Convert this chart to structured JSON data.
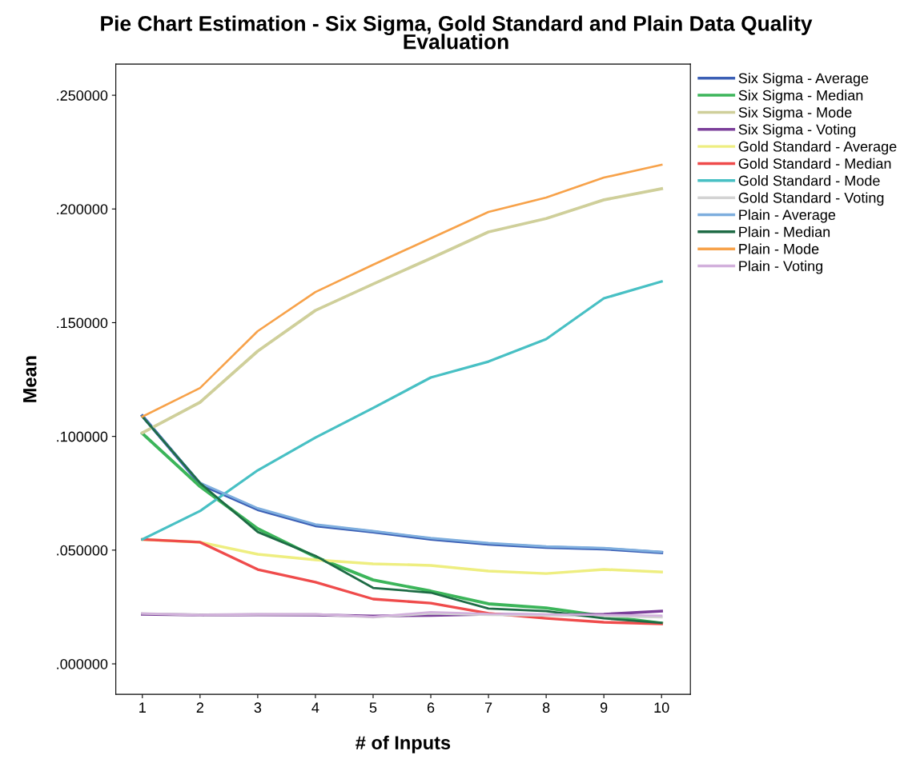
{
  "chart_data": {
    "type": "line",
    "title": "Pie Chart Estimation - Six Sigma, Gold Standard and Plain Data Quality\nEvaluation",
    "xlabel": "# of Inputs",
    "ylabel": "Mean",
    "x": [
      1,
      2,
      3,
      4,
      5,
      6,
      7,
      8,
      9,
      10
    ],
    "xlim": [
      0.54,
      10.5
    ],
    "xticks": [
      1,
      2,
      3,
      4,
      5,
      6,
      7,
      8,
      9,
      10
    ],
    "ylim": [
      -0.0134,
      0.2637
    ],
    "yticks": [
      {
        "value": 0,
        "label": ".000000"
      },
      {
        "value": 0.05,
        "label": ".050000"
      },
      {
        "value": 0.1,
        "label": ".100000"
      },
      {
        "value": 0.15,
        "label": ".150000"
      },
      {
        "value": 0.2,
        "label": ".200000"
      },
      {
        "value": 0.25,
        "label": ".250000"
      }
    ],
    "grid": false,
    "legend": "right",
    "marker": "none",
    "line_style": "solid",
    "series": [
      {
        "name": "Six Sigma - Average",
        "color": "#3b5fb5",
        "values": [
          0.109,
          0.0791,
          0.0679,
          0.0608,
          0.058,
          0.0549,
          0.0527,
          0.0513,
          0.0506,
          0.0489
        ]
      },
      {
        "name": "Six Sigma - Median",
        "color": "#3cb55a",
        "values": [
          0.1013,
          0.078,
          0.0594,
          0.047,
          0.0369,
          0.032,
          0.0264,
          0.0246,
          0.021,
          0.0179
        ]
      },
      {
        "name": "Six Sigma - Mode",
        "color": "#cfcf9a",
        "values": [
          0.1016,
          0.115,
          0.1375,
          0.1554,
          0.167,
          0.1783,
          0.1899,
          0.1958,
          0.204,
          0.2089
        ]
      },
      {
        "name": "Six Sigma - Voting",
        "color": "#7b3f9a",
        "values": [
          0.0218,
          0.0215,
          0.0216,
          0.0215,
          0.021,
          0.0213,
          0.0218,
          0.0215,
          0.0218,
          0.0232
        ]
      },
      {
        "name": "Gold Standard - Average",
        "color": "#eeee80",
        "values": [
          0.0547,
          0.0535,
          0.0482,
          0.0457,
          0.044,
          0.0433,
          0.0408,
          0.0397,
          0.0415,
          0.0404
        ]
      },
      {
        "name": "Gold Standard - Median",
        "color": "#ef4b4b",
        "values": [
          0.0547,
          0.0535,
          0.0415,
          0.0359,
          0.0285,
          0.0267,
          0.0222,
          0.02,
          0.0183,
          0.0176
        ]
      },
      {
        "name": "Gold Standard - Mode",
        "color": "#48c0c4",
        "values": [
          0.0547,
          0.0672,
          0.0851,
          0.0995,
          0.1125,
          0.1259,
          0.1329,
          0.1428,
          0.1607,
          0.1681
        ]
      },
      {
        "name": "Gold Standard - Voting",
        "color": "#d3d3d3",
        "values": [
          0.0222,
          0.0215,
          0.0217,
          0.0218,
          0.0205,
          0.0222,
          0.0216,
          0.0213,
          0.021,
          0.0205
        ]
      },
      {
        "name": "Plain - Average",
        "color": "#7eaede",
        "values": [
          0.1088,
          0.0796,
          0.0684,
          0.0613,
          0.0584,
          0.0553,
          0.0531,
          0.0516,
          0.0509,
          0.0492
        ]
      },
      {
        "name": "Plain - Median",
        "color": "#1e6b45",
        "values": [
          0.1087,
          0.0795,
          0.058,
          0.0475,
          0.0334,
          0.0313,
          0.0243,
          0.0232,
          0.02,
          0.018
        ]
      },
      {
        "name": "Plain - Mode",
        "color": "#f7a24a",
        "values": [
          0.1087,
          0.1213,
          0.1463,
          0.1635,
          0.1755,
          0.1871,
          0.1987,
          0.205,
          0.2138,
          0.2194
        ]
      },
      {
        "name": "Plain - Voting",
        "color": "#d2b0dc",
        "values": [
          0.0222,
          0.0215,
          0.0218,
          0.0219,
          0.0207,
          0.0228,
          0.022,
          0.0218,
          0.0215,
          0.0212
        ]
      }
    ]
  }
}
